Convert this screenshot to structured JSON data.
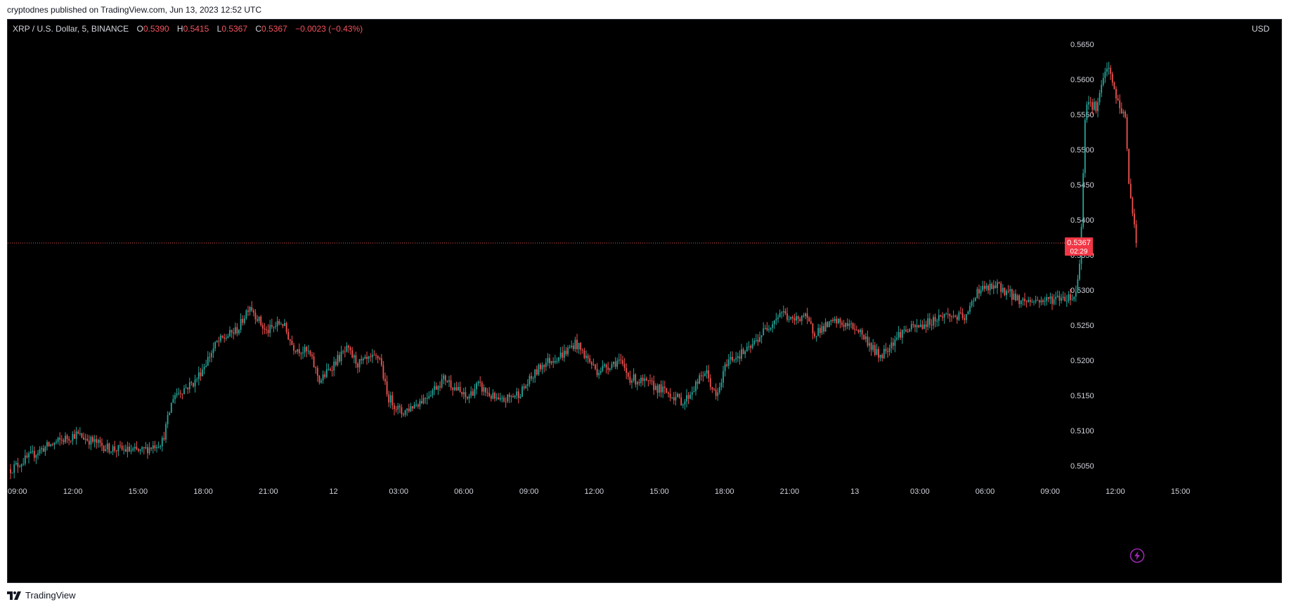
{
  "header": {
    "published_text": "cryptodnes published on TradingView.com, Jun 13, 2023 12:52 UTC"
  },
  "legend": {
    "symbol": "XRP / U.S. Dollar, 5, BINANCE",
    "open_label": "O",
    "open": "0.5390",
    "high_label": "H",
    "high": "0.5415",
    "low_label": "L",
    "low": "0.5367",
    "close_label": "C",
    "close": "0.5367",
    "change": "−0.0023 (−0.43%)"
  },
  "currency": "USD",
  "price_tag": {
    "price": "0.5367",
    "countdown": "02:29"
  },
  "footer": {
    "brand": "TradingView"
  },
  "colors": {
    "up": "#26a69a",
    "down": "#ef5350",
    "background": "#000000",
    "axis_text": "#d1d4dc"
  },
  "icons": {
    "alert": "lightning-bolt-icon",
    "logo": "tradingview-logo-icon"
  },
  "chart_data": {
    "type": "candlestick",
    "title": "XRP / U.S. Dollar, 5, BINANCE",
    "interval": "5",
    "ylim": [
      0.503,
      0.5665
    ],
    "y_ticks": [
      "0.5050",
      "0.5100",
      "0.5150",
      "0.5200",
      "0.5250",
      "0.5300",
      "0.5350",
      "0.5400",
      "0.5450",
      "0.5500",
      "0.5550",
      "0.5600",
      "0.5650"
    ],
    "x_ticks": [
      "09:00",
      "12:00",
      "15:00",
      "18:00",
      "21:00",
      "12",
      "03:00",
      "06:00",
      "09:00",
      "12:00",
      "15:00",
      "18:00",
      "21:00",
      "13",
      "03:00",
      "06:00",
      "09:00",
      "12:00",
      "15:00"
    ],
    "last_price": 0.5367,
    "series": [
      {
        "name": "XRP / U.S. Dollar",
        "anchors": [
          {
            "t": "09:00",
            "v": 0.5045
          },
          {
            "t": "10:30",
            "v": 0.5075
          },
          {
            "t": "12:00",
            "v": 0.5095
          },
          {
            "t": "13:30",
            "v": 0.5075
          },
          {
            "t": "15:00",
            "v": 0.507
          },
          {
            "t": "16:00",
            "v": 0.5085
          },
          {
            "t": "16:30",
            "v": 0.515
          },
          {
            "t": "17:30",
            "v": 0.517
          },
          {
            "t": "18:30",
            "v": 0.5225
          },
          {
            "t": "19:30",
            "v": 0.5245
          },
          {
            "t": "20:00",
            "v": 0.528
          },
          {
            "t": "20:45",
            "v": 0.524
          },
          {
            "t": "21:30",
            "v": 0.5255
          },
          {
            "t": "22:00",
            "v": 0.522
          },
          {
            "t": "22:45",
            "v": 0.521
          },
          {
            "t": "23:15",
            "v": 0.517
          },
          {
            "t": "00:00",
            "v": 0.52
          },
          {
            "t": "00:30",
            "v": 0.5215
          },
          {
            "t": "01:00",
            "v": 0.5195
          },
          {
            "t": "02:00",
            "v": 0.5205
          },
          {
            "t": "02:20",
            "v": 0.515
          },
          {
            "t": "03:00",
            "v": 0.5125
          },
          {
            "t": "04:00",
            "v": 0.5145
          },
          {
            "t": "05:00",
            "v": 0.5175
          },
          {
            "t": "06:00",
            "v": 0.5145
          },
          {
            "t": "06:30",
            "v": 0.5165
          },
          {
            "t": "07:30",
            "v": 0.514
          },
          {
            "t": "08:30",
            "v": 0.5155
          },
          {
            "t": "09:30",
            "v": 0.5195
          },
          {
            "t": "10:30",
            "v": 0.521
          },
          {
            "t": "11:00",
            "v": 0.5225
          },
          {
            "t": "12:00",
            "v": 0.5185
          },
          {
            "t": "13:00",
            "v": 0.52
          },
          {
            "t": "13:30",
            "v": 0.5175
          },
          {
            "t": "14:30",
            "v": 0.5165
          },
          {
            "t": "15:30",
            "v": 0.515
          },
          {
            "t": "16:00",
            "v": 0.514
          },
          {
            "t": "17:00",
            "v": 0.5185
          },
          {
            "t": "17:30",
            "v": 0.5145
          },
          {
            "t": "18:00",
            "v": 0.52
          },
          {
            "t": "19:00",
            "v": 0.5215
          },
          {
            "t": "19:30",
            "v": 0.5235
          },
          {
            "t": "20:30",
            "v": 0.527
          },
          {
            "t": "21:00",
            "v": 0.5255
          },
          {
            "t": "21:30",
            "v": 0.5265
          },
          {
            "t": "22:00",
            "v": 0.524
          },
          {
            "t": "23:00",
            "v": 0.5255
          },
          {
            "t": "00:00",
            "v": 0.5245
          },
          {
            "t": "00:30",
            "v": 0.5225
          },
          {
            "t": "01:00",
            "v": 0.5205
          },
          {
            "t": "02:00",
            "v": 0.524
          },
          {
            "t": "03:00",
            "v": 0.525
          },
          {
            "t": "04:00",
            "v": 0.5265
          },
          {
            "t": "05:00",
            "v": 0.526
          },
          {
            "t": "05:30",
            "v": 0.53
          },
          {
            "t": "06:30",
            "v": 0.5305
          },
          {
            "t": "07:30",
            "v": 0.5285
          },
          {
            "t": "08:30",
            "v": 0.5285
          },
          {
            "t": "09:30",
            "v": 0.529
          },
          {
            "t": "10:00",
            "v": 0.529
          },
          {
            "t": "10:15",
            "v": 0.534
          },
          {
            "t": "10:30",
            "v": 0.557
          },
          {
            "t": "11:00",
            "v": 0.556
          },
          {
            "t": "11:30",
            "v": 0.562
          },
          {
            "t": "12:00",
            "v": 0.5565
          },
          {
            "t": "12:20",
            "v": 0.5545
          },
          {
            "t": "12:30",
            "v": 0.545
          },
          {
            "t": "12:45",
            "v": 0.539
          },
          {
            "t": "12:52",
            "v": 0.5367
          }
        ]
      }
    ]
  }
}
